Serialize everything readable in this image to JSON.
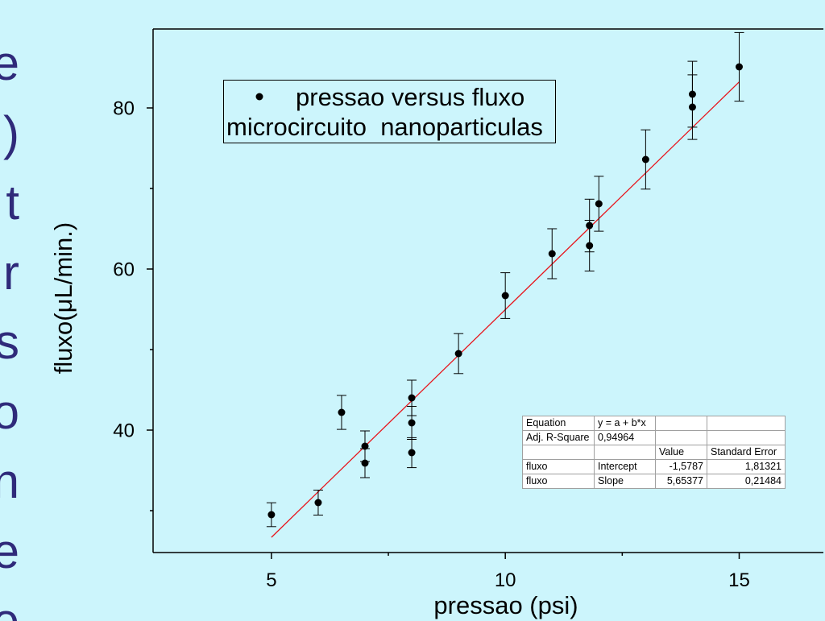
{
  "colors": {
    "background": "#ccf5fc",
    "side_text": "#2f2a7a",
    "fit_line": "#e8141b",
    "points": "#000000",
    "table_background": "#ffffff",
    "table_border": "#a0a0a0"
  },
  "slide": {
    "side_letters": [
      "e",
      ")",
      "t",
      "r",
      "s",
      "o",
      "n",
      "e",
      "e"
    ]
  },
  "chart_data": {
    "type": "scatter",
    "xlabel": "pressao (psi)",
    "ylabel": "fluxo(μL/min.)",
    "xlim": [
      2.47,
      16.8
    ],
    "ylim": [
      24.8,
      89.8
    ],
    "x_ticks": [
      5,
      10,
      15
    ],
    "x_minor_ticks": [
      7.5,
      12.5
    ],
    "x_tick_labels": [
      "5",
      "10",
      "15"
    ],
    "y_ticks": [
      40,
      60,
      80
    ],
    "y_minor_ticks": [
      30,
      50,
      70
    ],
    "y_tick_labels": [
      "40",
      "60",
      "80"
    ],
    "grid": false,
    "legend": {
      "position": "top-left",
      "marker": "filled-circle",
      "lines": [
        "pressao versus fluxo",
        "microcircuito  nanoparticulas"
      ]
    },
    "series": [
      {
        "name": "pressao versus fluxo",
        "marker": "filled-circle",
        "x": [
          5,
          6,
          6.5,
          7,
          7,
          8,
          8,
          8,
          9,
          10,
          11,
          11.8,
          11.8,
          12,
          13,
          14,
          14,
          15
        ],
        "y": [
          29.5,
          31.0,
          42.2,
          38.0,
          35.9,
          44.0,
          40.9,
          37.2,
          49.5,
          56.7,
          61.9,
          65.4,
          62.9,
          68.1,
          73.6,
          81.7,
          80.1,
          85.1
        ],
        "yerr": [
          1.48,
          1.55,
          2.11,
          1.9,
          1.8,
          2.2,
          2.05,
          1.86,
          2.48,
          2.84,
          3.1,
          3.27,
          3.15,
          3.41,
          3.68,
          4.09,
          4.01,
          4.26
        ]
      }
    ],
    "fit": {
      "type": "linear",
      "intercept": -1.5787,
      "slope": 5.65377,
      "x_from": 5,
      "x_to": 15
    },
    "stats_table": {
      "position": "bottom-right",
      "rows": [
        [
          "Equation",
          "y = a + b*x",
          "",
          ""
        ],
        [
          "Adj. R-Square",
          "0,94964",
          "",
          ""
        ],
        [
          "",
          "",
          "Value",
          "Standard Error"
        ],
        [
          "fluxo",
          "Intercept",
          "-1,5787",
          "1,81321"
        ],
        [
          "fluxo",
          "Slope",
          "5,65377",
          "0,21484"
        ]
      ]
    }
  }
}
